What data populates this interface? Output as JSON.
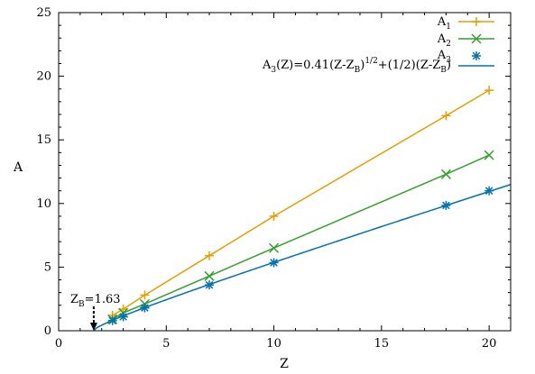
{
  "chart_data": {
    "type": "line",
    "xlabel": "Z",
    "ylabel": "A",
    "xlim": [
      0,
      21
    ],
    "ylim": [
      0,
      25
    ],
    "xticks": [
      0,
      5,
      10,
      15,
      20
    ],
    "yticks": [
      0,
      5,
      10,
      15,
      20,
      25
    ],
    "grid": false,
    "legend_position": "top-right",
    "series": [
      {
        "name": "A1",
        "name_base": "A",
        "name_sub": "1",
        "marker": "plus",
        "color": "#e69f00",
        "x": [
          2.5,
          3.0,
          4.0,
          7.0,
          10.0,
          18.0,
          20.0
        ],
        "y": [
          1.2,
          1.7,
          2.8,
          5.9,
          9.0,
          16.9,
          18.9
        ],
        "connected": true
      },
      {
        "name": "A2",
        "name_base": "A",
        "name_sub": "2",
        "marker": "cross",
        "color": "#33a02c",
        "x": [
          2.5,
          3.0,
          4.0,
          7.0,
          10.0,
          18.0,
          20.0
        ],
        "y": [
          0.9,
          1.4,
          2.1,
          4.3,
          6.5,
          12.3,
          13.8
        ],
        "connected": true
      },
      {
        "name": "A3",
        "name_base": "A",
        "name_sub": "3",
        "marker": "asterisk",
        "color": "#0072b2",
        "x": [
          2.5,
          3.0,
          4.0,
          7.0,
          10.0,
          18.0,
          20.0
        ],
        "y": [
          0.8,
          1.1,
          1.8,
          3.6,
          5.35,
          9.85,
          11.0
        ],
        "connected": false
      }
    ],
    "fit": {
      "color": "#0072b2",
      "zb": 1.63,
      "coef": 0.41,
      "legend_parts": [
        "A",
        "3",
        "(Z)=0.41(Z-Z",
        "B",
        ")",
        "1/2",
        "+(1/2)(Z-Z",
        "B",
        ")"
      ]
    },
    "annotation": {
      "text_base": "Z",
      "text_sub": "B",
      "text_rest": "=1.63",
      "x": 1.63
    }
  }
}
